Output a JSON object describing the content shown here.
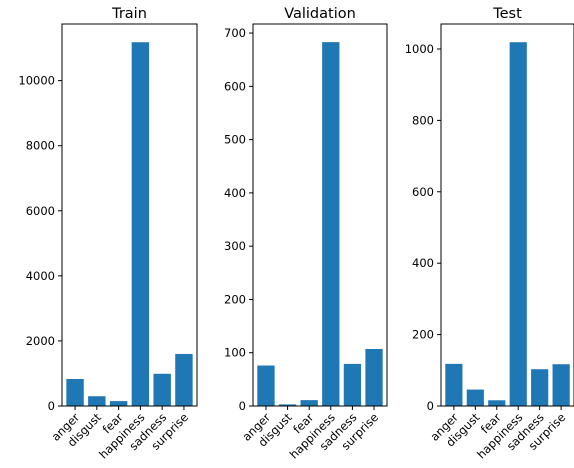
{
  "bar_color": "#1f77b4",
  "chart_data": [
    {
      "type": "bar",
      "title": "Train",
      "categories": [
        "anger",
        "disgust",
        "fear",
        "happiness",
        "sadness",
        "surprise"
      ],
      "values": [
        830,
        300,
        150,
        11180,
        990,
        1600
      ],
      "ylim": [
        0,
        11740
      ],
      "yticks": [
        0,
        2000,
        4000,
        6000,
        8000,
        10000
      ],
      "ytick_labels": [
        "0",
        "2000",
        "4000",
        "6000",
        "8000",
        "10000"
      ],
      "xlabel": "",
      "ylabel": "",
      "grid": false
    },
    {
      "type": "bar",
      "title": "Validation",
      "categories": [
        "anger",
        "disgust",
        "fear",
        "happiness",
        "sadness",
        "surprise"
      ],
      "values": [
        76,
        3,
        11,
        683,
        79,
        107
      ],
      "ylim": [
        0,
        717
      ],
      "yticks": [
        0,
        100,
        200,
        300,
        400,
        500,
        600,
        700
      ],
      "ytick_labels": [
        "0",
        "100",
        "200",
        "300",
        "400",
        "500",
        "600",
        "700"
      ],
      "xlabel": "",
      "ylabel": "",
      "grid": false
    },
    {
      "type": "bar",
      "title": "Test",
      "categories": [
        "anger",
        "disgust",
        "fear",
        "happiness",
        "sadness",
        "surprise"
      ],
      "values": [
        118,
        46,
        16,
        1019,
        103,
        117
      ],
      "ylim": [
        0,
        1070
      ],
      "yticks": [
        0,
        200,
        400,
        600,
        800,
        1000
      ],
      "ytick_labels": [
        "0",
        "200",
        "400",
        "600",
        "800",
        "1000"
      ],
      "xlabel": "",
      "ylabel": "",
      "grid": false
    }
  ]
}
